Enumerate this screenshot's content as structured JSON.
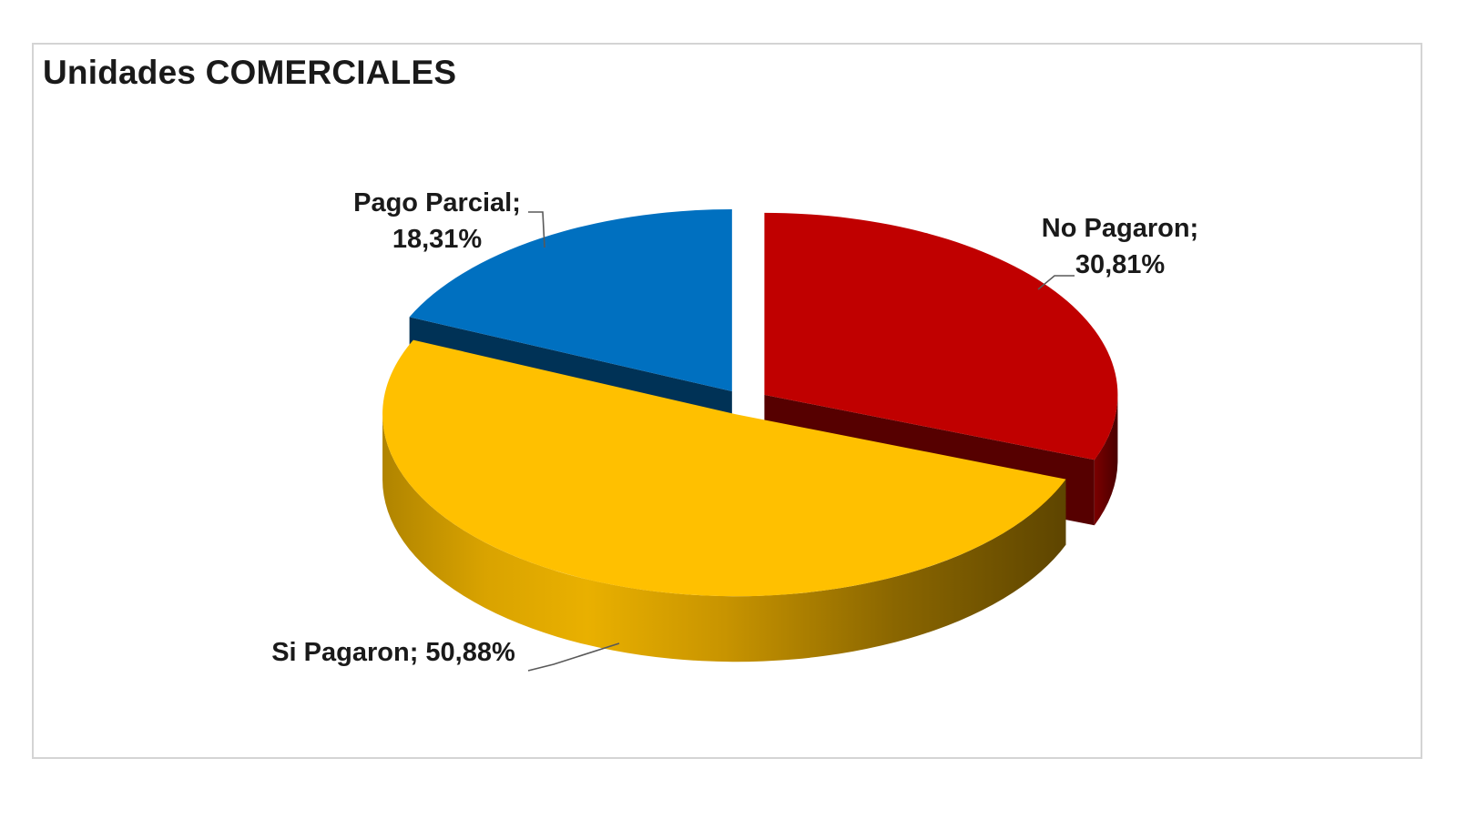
{
  "chart_data": {
    "type": "pie",
    "title": "Unidades COMERCIALES",
    "slices": [
      {
        "label": "No Pagaron",
        "value": 30.81,
        "display": "30,81%",
        "color": "#c00000"
      },
      {
        "label": "Si Pagaron",
        "value": 50.88,
        "display": "50,88%",
        "color": "#ffc000"
      },
      {
        "label": "Pago Parcial",
        "value": 18.31,
        "display": "18,31%",
        "color": "#0070c0"
      }
    ],
    "style": "3d-exploded",
    "legend": "none"
  }
}
